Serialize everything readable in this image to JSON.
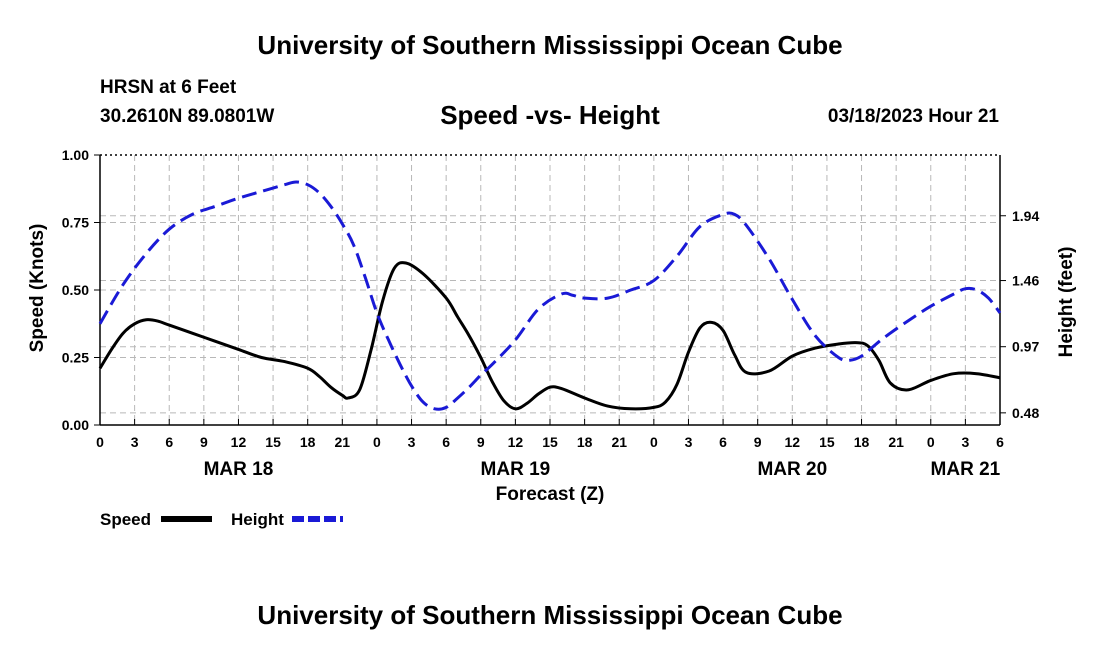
{
  "header": {
    "title": "University of Southern Mississippi Ocean Cube",
    "station": "HRSN at 6 Feet",
    "coords": "30.2610N  89.0801W",
    "subtitle": "Speed -vs- Height",
    "datestamp": "03/18/2023 Hour 21"
  },
  "footer": {
    "title": "University of Southern Mississippi Ocean Cube"
  },
  "chart_data": {
    "type": "line",
    "xlabel": "Forecast (Z)",
    "ylabel_left": "Speed (Knots)",
    "ylabel_right": "Height (feet)",
    "x_unit": "hours since 03/18 00Z",
    "xlim": [
      0,
      78
    ],
    "x_ticks": [
      0,
      3,
      6,
      9,
      12,
      15,
      18,
      21,
      24,
      27,
      30,
      33,
      36,
      39,
      42,
      45,
      48,
      51,
      54,
      57,
      60,
      63,
      66,
      69,
      72,
      75,
      78
    ],
    "x_tick_labels": [
      "0",
      "3",
      "6",
      "9",
      "12",
      "15",
      "18",
      "21",
      "0",
      "3",
      "6",
      "9",
      "12",
      "15",
      "18",
      "21",
      "0",
      "3",
      "6",
      "9",
      "12",
      "15",
      "18",
      "21",
      "0",
      "3",
      "6"
    ],
    "day_labels": [
      {
        "x": 12,
        "label": "MAR 18"
      },
      {
        "x": 36,
        "label": "MAR 19"
      },
      {
        "x": 60,
        "label": "MAR 20"
      },
      {
        "x": 75,
        "label": "MAR 21"
      }
    ],
    "ylim_left": [
      0,
      1
    ],
    "y_ticks_left": [
      0,
      0.25,
      0.5,
      0.75,
      1.0
    ],
    "y_tick_labels_left": [
      "0.00",
      "0.25",
      "0.50",
      "0.75",
      "1.00"
    ],
    "ylim_right": [
      0.39,
      2.39
    ],
    "y_ticks_right": [
      0.48,
      0.97,
      1.46,
      1.94
    ],
    "y_tick_labels_right": [
      "0.48",
      "0.97",
      "1.46",
      "1.94"
    ],
    "grid": true,
    "legend": {
      "position": "bottom-left",
      "entries": [
        "Speed",
        "Height"
      ]
    },
    "series": [
      {
        "name": "Speed",
        "axis": "left",
        "color": "#000000",
        "dash": "solid",
        "x": [
          0,
          1,
          2,
          3,
          4,
          5,
          6,
          8,
          10,
          12,
          14,
          16,
          18,
          19,
          20,
          21,
          21.5,
          22.5,
          23.5,
          24.5,
          25.5,
          26.5,
          28,
          30,
          31,
          32,
          33,
          34,
          35,
          36,
          37,
          38,
          39,
          40,
          42,
          44,
          46,
          48,
          49,
          50,
          51,
          52,
          53,
          54,
          55,
          56,
          58,
          60,
          62,
          64,
          65.5,
          66.5,
          67.5,
          68.5,
          70,
          72,
          74,
          76,
          78
        ],
        "y": [
          0.21,
          0.28,
          0.34,
          0.375,
          0.39,
          0.385,
          0.37,
          0.34,
          0.31,
          0.28,
          0.25,
          0.235,
          0.21,
          0.18,
          0.14,
          0.11,
          0.1,
          0.13,
          0.28,
          0.46,
          0.58,
          0.6,
          0.56,
          0.47,
          0.4,
          0.33,
          0.25,
          0.16,
          0.09,
          0.06,
          0.08,
          0.115,
          0.14,
          0.135,
          0.1,
          0.07,
          0.06,
          0.065,
          0.085,
          0.15,
          0.27,
          0.36,
          0.38,
          0.35,
          0.26,
          0.195,
          0.2,
          0.255,
          0.285,
          0.3,
          0.305,
          0.295,
          0.24,
          0.155,
          0.13,
          0.165,
          0.19,
          0.19,
          0.175
        ]
      },
      {
        "name": "Height",
        "axis": "right",
        "color": "#1a1ad6",
        "dash": "dashed",
        "x": [
          0,
          2,
          4,
          6,
          8,
          10,
          12,
          14,
          16,
          17,
          18,
          19,
          20,
          21,
          22,
          23,
          24,
          25,
          26,
          27,
          28,
          29,
          30,
          31,
          32,
          33,
          34,
          36,
          38,
          40,
          41,
          42,
          44,
          46,
          48,
          50,
          52,
          54,
          55,
          56,
          58,
          60,
          62,
          64,
          65,
          66,
          67,
          68,
          70,
          72,
          74,
          75,
          76,
          77,
          78
        ],
        "y": [
          1.14,
          1.43,
          1.66,
          1.84,
          1.95,
          2.01,
          2.07,
          2.12,
          2.17,
          2.19,
          2.17,
          2.11,
          2.01,
          1.88,
          1.72,
          1.48,
          1.22,
          1.02,
          0.84,
          0.68,
          0.56,
          0.51,
          0.52,
          0.59,
          0.67,
          0.76,
          0.84,
          1.02,
          1.25,
          1.36,
          1.35,
          1.33,
          1.33,
          1.39,
          1.46,
          1.64,
          1.86,
          1.95,
          1.95,
          1.87,
          1.62,
          1.32,
          1.05,
          0.89,
          0.87,
          0.9,
          0.97,
          1.04,
          1.16,
          1.27,
          1.36,
          1.4,
          1.39,
          1.33,
          1.22
        ]
      }
    ]
  }
}
